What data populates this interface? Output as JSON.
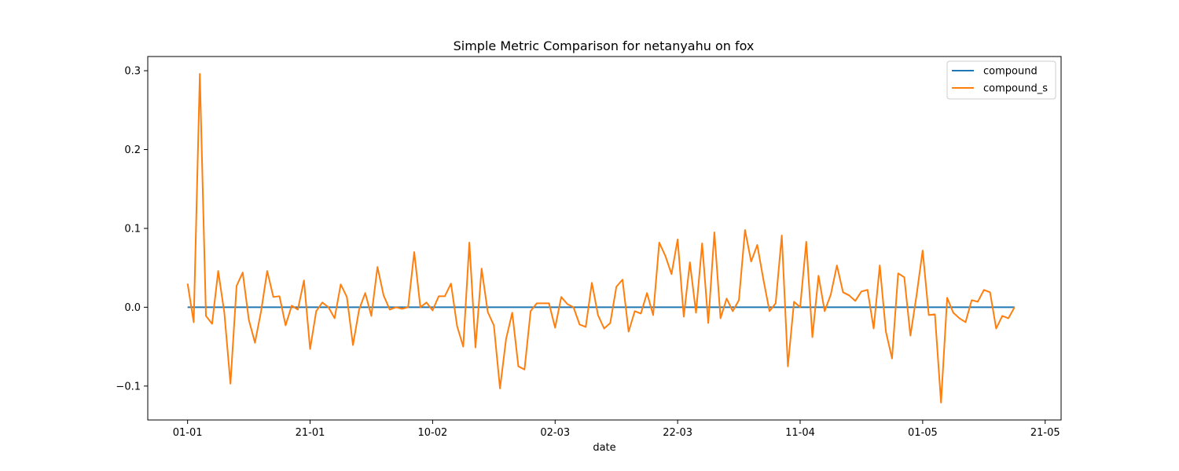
{
  "chart_data": {
    "type": "line",
    "title": "Simple Metric Comparison for netanyahu on fox",
    "xlabel": "date",
    "ylabel": "",
    "x_ticks": [
      "01-01",
      "21-01",
      "10-02",
      "02-03",
      "22-03",
      "11-04",
      "01-05",
      "21-05"
    ],
    "x_tick_positions": [
      0,
      20,
      40,
      60,
      80,
      100,
      120,
      140
    ],
    "x_range": [
      -6.5,
      142.6
    ],
    "y_ticks": [
      -0.1,
      0.0,
      0.1,
      0.2,
      0.3
    ],
    "y_tick_labels": [
      "−0.1",
      "0.0",
      "0.1",
      "0.2",
      "0.3"
    ],
    "ylim": [
      -0.143,
      0.318
    ],
    "legend_position": "top-right",
    "grid": false,
    "series": [
      {
        "name": "compound",
        "color": "#1f77b4",
        "x_start": 0,
        "x_end": 135,
        "values": [
          0.0,
          0.0
        ]
      },
      {
        "name": "compound_s",
        "color": "#ff7f0e",
        "values": [
          0.03,
          -0.019,
          0.296,
          -0.011,
          -0.021,
          0.046,
          -0.007,
          -0.097,
          0.027,
          0.044,
          -0.016,
          -0.045,
          -0.005,
          0.046,
          0.013,
          0.014,
          -0.023,
          0.002,
          -0.003,
          0.034,
          -0.053,
          -0.005,
          0.006,
          0.0,
          -0.014,
          0.029,
          0.013,
          -0.048,
          -0.003,
          0.018,
          -0.011,
          0.051,
          0.015,
          -0.003,
          0.0,
          -0.002,
          0.0,
          0.07,
          0.0,
          0.006,
          -0.004,
          0.014,
          0.014,
          0.03,
          -0.024,
          -0.05,
          0.082,
          -0.051,
          0.049,
          -0.006,
          -0.023,
          -0.103,
          -0.04,
          -0.007,
          -0.075,
          -0.079,
          -0.005,
          0.005,
          0.005,
          0.005,
          -0.026,
          0.013,
          0.004,
          0.0,
          -0.022,
          -0.025,
          0.031,
          -0.01,
          -0.027,
          -0.02,
          0.026,
          0.035,
          -0.031,
          -0.005,
          -0.008,
          0.018,
          -0.01,
          0.082,
          0.065,
          0.042,
          0.086,
          -0.012,
          0.057,
          -0.007,
          0.081,
          -0.02,
          0.095,
          -0.014,
          0.011,
          -0.005,
          0.009,
          0.098,
          0.058,
          0.079,
          0.035,
          -0.005,
          0.005,
          0.091,
          -0.075,
          0.007,
          0.0,
          0.083,
          -0.038,
          0.04,
          -0.005,
          0.016,
          0.053,
          0.019,
          0.015,
          0.008,
          0.02,
          0.022,
          -0.027,
          0.053,
          -0.031,
          -0.065,
          0.043,
          0.038,
          -0.036,
          0.015,
          0.072,
          -0.01,
          -0.009,
          -0.121,
          0.012,
          -0.007,
          -0.014,
          -0.019,
          0.009,
          0.007,
          0.022,
          0.019,
          -0.027,
          -0.011,
          -0.014,
          0.0
        ]
      }
    ]
  }
}
